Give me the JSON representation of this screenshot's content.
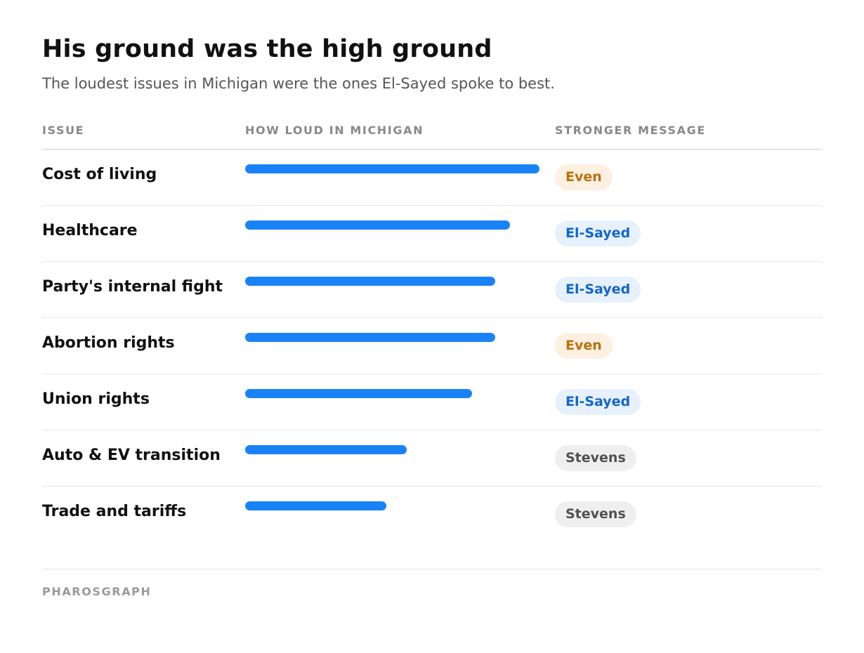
{
  "title": "His ground was the high ground",
  "subtitle": "The loudest issues in Michigan were the ones El-Sayed spoke to best.",
  "columns": {
    "issue": "ISSUE",
    "loudness": "HOW LOUD IN MICHIGAN",
    "message": "STRONGER MESSAGE"
  },
  "source": "PHAROSGRAPH",
  "colors": {
    "bar": "#1a82f7",
    "even_bg": "#fdf0e1",
    "even_text": "#b8710c",
    "elsayed_bg": "#e6f1fd",
    "elsayed_text": "#1466c8",
    "stevens_bg": "#efefef",
    "stevens_text": "#505050"
  },
  "chart_data": {
    "type": "bar",
    "orientation": "horizontal",
    "categories": [
      "Cost of living",
      "Healthcare",
      "Party's internal fight",
      "Abortion rights",
      "Union rights",
      "Auto & EV transition",
      "Trade and tariffs"
    ],
    "values": [
      100,
      90,
      85,
      85,
      77,
      55,
      48
    ],
    "xlim": [
      0,
      100
    ],
    "grid": false,
    "stronger_message": [
      "Even",
      "El-Sayed",
      "El-Sayed",
      "Even",
      "El-Sayed",
      "Stevens",
      "Stevens"
    ]
  }
}
